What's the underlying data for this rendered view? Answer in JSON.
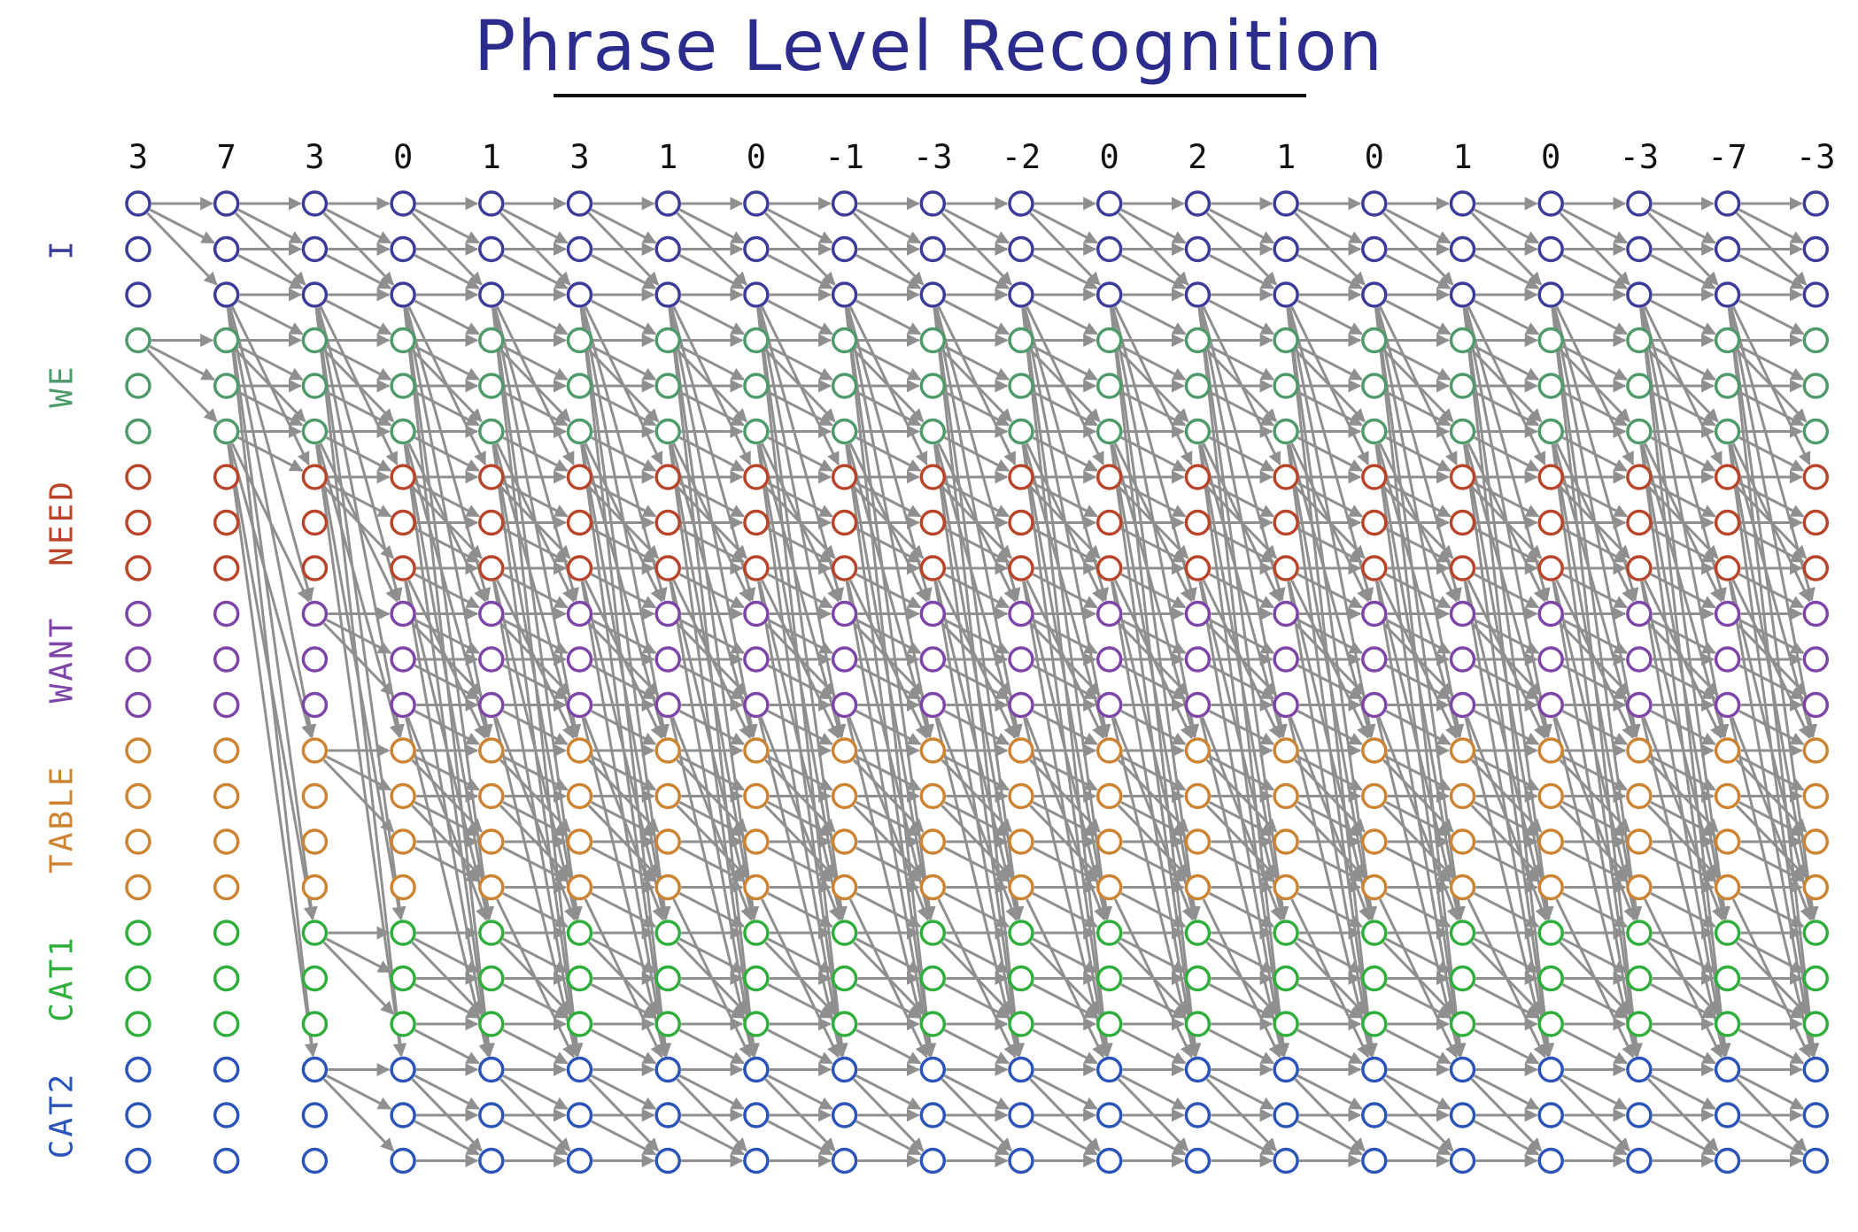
{
  "title": "Phrase Level Recognition",
  "column_scores": [
    "3",
    "7",
    "3",
    "0",
    "1",
    "3",
    "1",
    "0",
    "-1",
    "-3",
    "-2",
    "0",
    "2",
    "1",
    "0",
    "1",
    "0",
    "-3",
    "-7",
    "-3"
  ],
  "rows": [
    {
      "label": "I",
      "states": 3,
      "color": "#3b3b9a"
    },
    {
      "label": "WE",
      "states": 3,
      "color": "#4f9a6a"
    },
    {
      "label": "NEED",
      "states": 3,
      "color": "#b8452a"
    },
    {
      "label": "WANT",
      "states": 3,
      "color": "#7d45a8"
    },
    {
      "label": "TABLE",
      "states": 4,
      "color": "#cc8433"
    },
    {
      "label": "CAT1",
      "states": 3,
      "color": "#2fae3c"
    },
    {
      "label": "CAT2",
      "states": 3,
      "color": "#2b54b8"
    }
  ],
  "edge_color": "#8f8f8f"
}
